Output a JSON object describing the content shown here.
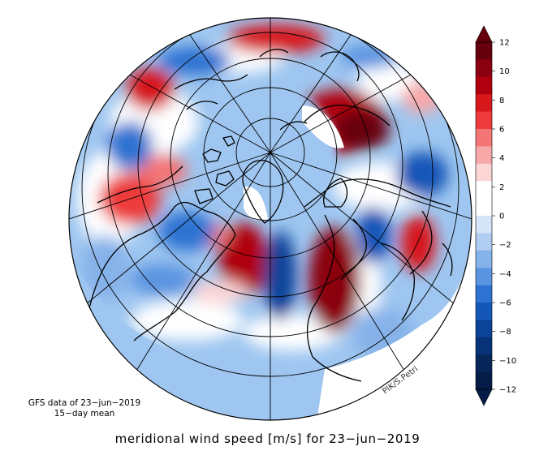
{
  "figure": {
    "title": "meridional wind speed [m/s] for 23−jun−2019",
    "source_line1": "GFS data of 23−jun−2019",
    "source_line2": "15−day mean",
    "credit": "PIK/S.Petri"
  },
  "colorbar": {
    "tick_labels": [
      "12",
      "10",
      "8",
      "6",
      "4",
      "2",
      "0",
      "−2",
      "−4",
      "−6",
      "−8",
      "−10",
      "−12"
    ],
    "colors": [
      "#67000d",
      "#8b0010",
      "#b00010",
      "#d7191c",
      "#ee3b3b",
      "#f47575",
      "#f8a8a8",
      "#fcd5d5",
      "#ffffff",
      "#ffffff",
      "#d6e4f8",
      "#b0cdf2",
      "#86b2ea",
      "#5b94e0",
      "#2f73d2",
      "#1557b8",
      "#0b4399",
      "#083378",
      "#062559",
      "#041c46"
    ],
    "range": [
      -12,
      12
    ]
  },
  "map": {
    "projection": "orthographic, North Pole view",
    "land_color": "#9ec6f0",
    "ocean_color": "#ffffff",
    "coast_color": "#000000"
  }
}
